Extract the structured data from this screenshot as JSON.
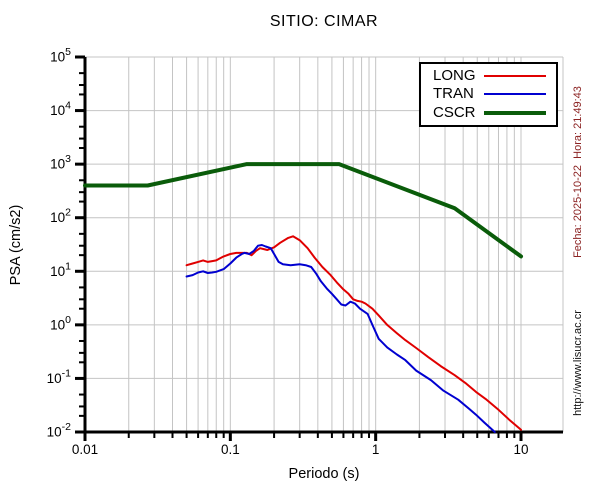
{
  "title": "SITIO: CIMAR",
  "side_texts": {
    "fecha": "Fecha: 2025-10-22  Hora: 21:49:43",
    "url": "http://www.lisucr.ac.cr"
  },
  "colors": {
    "long": "#e00000",
    "tran": "#0000d0",
    "cscr": "#0a5c0a",
    "grid": "#c4c4c4",
    "axis": "#000000",
    "fecha_text": "#8b2222",
    "url_text": "#111111"
  },
  "legend": {
    "entries": [
      "LONG",
      "TRAN",
      "CSCR"
    ],
    "position": "top-right"
  },
  "chart_data": {
    "type": "line",
    "title": "SITIO: CIMAR",
    "xlabel": "Periodo (s)",
    "ylabel": "PSA (cm/s2)",
    "x_scale": "log",
    "y_scale": "log",
    "xlim": [
      0.01,
      19.5
    ],
    "ylim": [
      0.01,
      100000
    ],
    "grid": true,
    "legend_position": "top-right",
    "x_ticks": [
      {
        "value": 0.01,
        "label": "0.01"
      },
      {
        "value": 0.1,
        "label": "0.1"
      },
      {
        "value": 1,
        "label": "1"
      },
      {
        "value": 10,
        "label": "10"
      }
    ],
    "y_tick_base": "10",
    "y_tick_exponents": [
      5,
      4,
      3,
      2,
      1,
      0,
      -1,
      -2
    ],
    "y_minor_mults": [
      2,
      3,
      5
    ],
    "x_minor_mults": [
      2,
      3,
      4,
      5,
      6,
      7,
      8,
      9
    ],
    "series": [
      {
        "name": "LONG",
        "color": "#e00000",
        "line_width": 2,
        "x": [
          0.05,
          0.055,
          0.06,
          0.065,
          0.07,
          0.075,
          0.08,
          0.085,
          0.09,
          0.1,
          0.11,
          0.12,
          0.13,
          0.14,
          0.15,
          0.16,
          0.17,
          0.18,
          0.2,
          0.22,
          0.25,
          0.27,
          0.3,
          0.34,
          0.38,
          0.43,
          0.49,
          0.54,
          0.6,
          0.65,
          0.7,
          0.75,
          0.8,
          0.85,
          0.95,
          1.05,
          1.2,
          1.4,
          1.6,
          1.9,
          2.3,
          2.8,
          3.5,
          4.2,
          4.9,
          5.8,
          7.0,
          8.3,
          10.0
        ],
        "y": [
          13,
          14,
          15,
          16,
          15,
          15.5,
          16,
          17.5,
          19,
          21,
          22,
          22,
          22,
          20,
          24,
          27,
          26,
          25,
          28,
          34,
          42,
          45,
          38,
          27,
          18,
          12,
          8.5,
          6.2,
          4.6,
          3.8,
          3.0,
          2.8,
          2.7,
          2.5,
          2.0,
          1.5,
          1.0,
          0.7,
          0.52,
          0.37,
          0.25,
          0.17,
          0.115,
          0.08,
          0.056,
          0.04,
          0.026,
          0.017,
          0.011
        ]
      },
      {
        "name": "TRAN",
        "color": "#0000d0",
        "line_width": 2,
        "x": [
          0.05,
          0.055,
          0.06,
          0.065,
          0.07,
          0.075,
          0.08,
          0.09,
          0.1,
          0.11,
          0.12,
          0.125,
          0.135,
          0.145,
          0.155,
          0.165,
          0.175,
          0.19,
          0.2,
          0.215,
          0.23,
          0.26,
          0.3,
          0.33,
          0.36,
          0.39,
          0.42,
          0.46,
          0.5,
          0.54,
          0.58,
          0.62,
          0.67,
          0.72,
          0.78,
          0.88,
          0.95,
          1.05,
          1.2,
          1.4,
          1.6,
          1.9,
          2.4,
          2.9,
          3.7,
          4.4,
          4.9,
          5.6,
          6.6
        ],
        "y": [
          8,
          8.5,
          9.5,
          10,
          9.3,
          9.5,
          9.8,
          11,
          14,
          18,
          21,
          22,
          21,
          24,
          30,
          31,
          29,
          27,
          21,
          15,
          13.5,
          13,
          13.5,
          13,
          12,
          9,
          6.5,
          4.8,
          3.8,
          3.0,
          2.4,
          2.3,
          2.7,
          2.5,
          2.0,
          1.6,
          1.0,
          0.55,
          0.38,
          0.28,
          0.22,
          0.14,
          0.093,
          0.06,
          0.04,
          0.027,
          0.021,
          0.015,
          0.01
        ]
      },
      {
        "name": "CSCR",
        "color": "#0a5c0a",
        "line_width": 4,
        "x": [
          0.01,
          0.027,
          0.13,
          0.56,
          3.5,
          10.0
        ],
        "y": [
          400,
          400,
          1000,
          1000,
          150,
          19
        ]
      }
    ]
  }
}
